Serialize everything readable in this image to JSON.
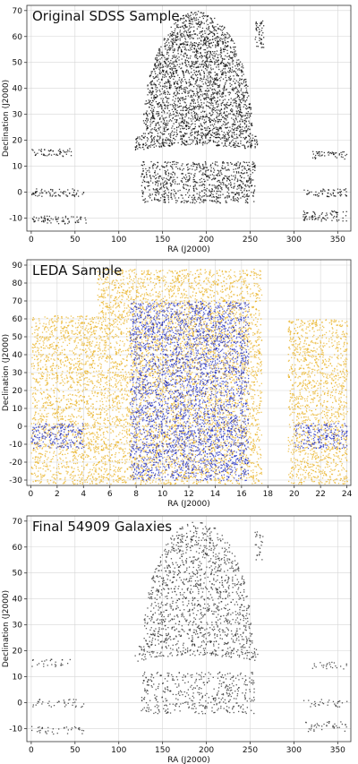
{
  "chart_data": [
    {
      "type": "scatter",
      "title": "Original SDSS Sample",
      "xlabel": "RA (J2000)",
      "ylabel": "Declination (J2000)",
      "xlim": [
        -5,
        365
      ],
      "ylim": [
        -15,
        72
      ],
      "xticks": [
        0,
        50,
        100,
        150,
        200,
        250,
        300,
        350
      ],
      "yticks": [
        -10,
        0,
        10,
        20,
        30,
        40,
        50,
        60,
        70
      ],
      "grid": true,
      "series": [
        {
          "color": "#000000",
          "density": 0.55,
          "regions": [
            {
              "shape": "cap",
              "ra": [
                127,
                252
              ],
              "dec": [
                22,
                70
              ]
            },
            {
              "shape": "band",
              "ra": [
                118,
                258
              ],
              "dec": [
                16,
                22
              ]
            },
            {
              "shape": "box",
              "ra": [
                125,
                255
              ],
              "dec": [
                -4,
                12
              ]
            },
            {
              "shape": "box",
              "ra": [
                0,
                45
              ],
              "dec": [
                14,
                17
              ]
            },
            {
              "shape": "box",
              "ra": [
                0,
                60
              ],
              "dec": [
                -1.5,
                1.5
              ]
            },
            {
              "shape": "box",
              "ra": [
                0,
                62
              ],
              "dec": [
                -12,
                -9
              ]
            },
            {
              "shape": "box",
              "ra": [
                255,
                265
              ],
              "dec": [
                55,
                67
              ]
            },
            {
              "shape": "box",
              "ra": [
                320,
                360
              ],
              "dec": [
                13,
                16
              ]
            },
            {
              "shape": "box",
              "ra": [
                310,
                360
              ],
              "dec": [
                -1.5,
                1.5
              ]
            },
            {
              "shape": "box",
              "ra": [
                310,
                360
              ],
              "dec": [
                -11,
                -7
              ]
            }
          ]
        }
      ]
    },
    {
      "type": "scatter",
      "title": "LEDA Sample",
      "xlabel": "RA (J2000)",
      "ylabel": "Declination (J2000)",
      "xlim": [
        -0.3,
        24.3
      ],
      "ylim": [
        -33,
        93
      ],
      "xticks": [
        0,
        2,
        4,
        6,
        8,
        10,
        12,
        14,
        16,
        18,
        20,
        22,
        24
      ],
      "yticks": [
        -30,
        -20,
        -10,
        0,
        10,
        20,
        30,
        40,
        50,
        60,
        70,
        80,
        90
      ],
      "grid": true,
      "series": [
        {
          "color": "#e8b020",
          "density": 0.45,
          "regions": [
            {
              "shape": "box",
              "ra": [
                0,
                5
              ],
              "dec": [
                -32,
                62
              ]
            },
            {
              "shape": "box",
              "ra": [
                5,
                17.5
              ],
              "dec": [
                -32,
                88
              ]
            },
            {
              "shape": "box",
              "ra": [
                19.5,
                24
              ],
              "dec": [
                -32,
                60
              ]
            }
          ]
        },
        {
          "color": "#1e2bbf",
          "density": 0.5,
          "regions": [
            {
              "shape": "box",
              "ra": [
                7.5,
                16.5
              ],
              "dec": [
                -30,
                70
              ]
            },
            {
              "shape": "box",
              "ra": [
                0,
                4
              ],
              "dec": [
                -12,
                2
              ]
            },
            {
              "shape": "box",
              "ra": [
                20,
                24
              ],
              "dec": [
                -12,
                2
              ]
            }
          ]
        }
      ]
    },
    {
      "type": "scatter",
      "title": "Final 54909 Galaxies",
      "xlabel": "RA (J2000)",
      "ylabel": "Declination (J2000)",
      "xlim": [
        -5,
        365
      ],
      "ylim": [
        -15,
        72
      ],
      "xticks": [
        0,
        50,
        100,
        150,
        200,
        250,
        300,
        350
      ],
      "yticks": [
        -10,
        0,
        10,
        20,
        30,
        40,
        50,
        60,
        70
      ],
      "grid": true,
      "series": [
        {
          "color": "#222222",
          "density": 0.28,
          "regions": [
            {
              "shape": "cap",
              "ra": [
                127,
                252
              ],
              "dec": [
                22,
                70
              ]
            },
            {
              "shape": "band",
              "ra": [
                118,
                258
              ],
              "dec": [
                16,
                22
              ]
            },
            {
              "shape": "box",
              "ra": [
                125,
                255
              ],
              "dec": [
                -4,
                12
              ]
            },
            {
              "shape": "box",
              "ra": [
                0,
                45
              ],
              "dec": [
                14,
                17
              ]
            },
            {
              "shape": "box",
              "ra": [
                0,
                60
              ],
              "dec": [
                -1.5,
                1.5
              ]
            },
            {
              "shape": "box",
              "ra": [
                0,
                62
              ],
              "dec": [
                -12,
                -9
              ]
            },
            {
              "shape": "box",
              "ra": [
                255,
                265
              ],
              "dec": [
                55,
                67
              ]
            },
            {
              "shape": "box",
              "ra": [
                320,
                360
              ],
              "dec": [
                13,
                16
              ]
            },
            {
              "shape": "box",
              "ra": [
                310,
                360
              ],
              "dec": [
                -1.5,
                1.5
              ]
            },
            {
              "shape": "box",
              "ra": [
                310,
                360
              ],
              "dec": [
                -11,
                -7
              ]
            }
          ]
        }
      ]
    }
  ]
}
